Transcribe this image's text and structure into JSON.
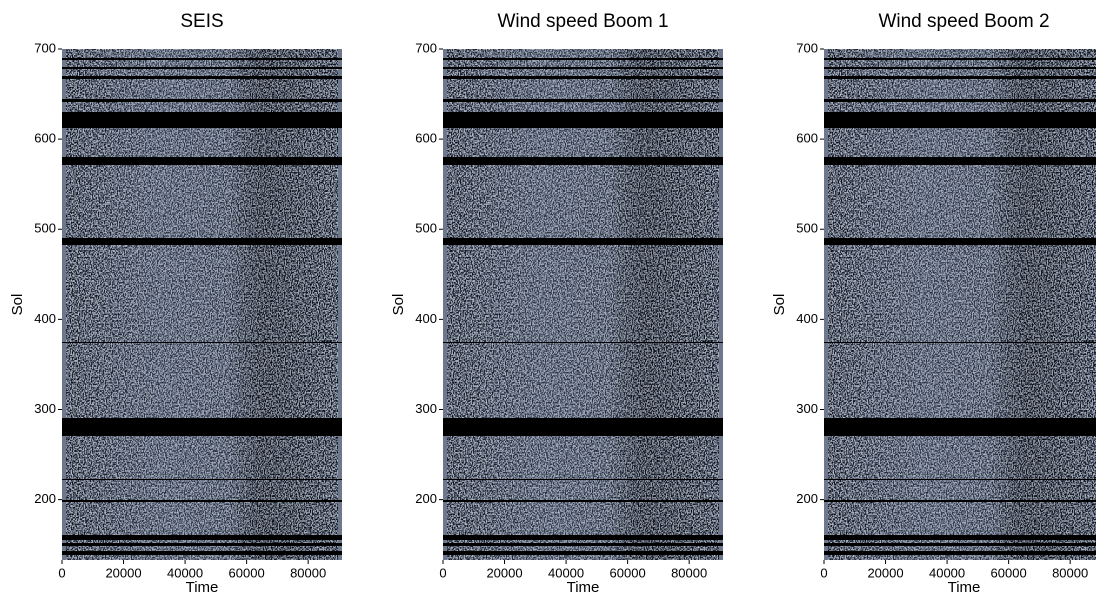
{
  "chart_data": [
    {
      "type": "image",
      "title": "SEIS",
      "xlabel": "Time",
      "ylabel": "Sol",
      "xlim": [
        0,
        91000
      ],
      "ylim": [
        133,
        700
      ],
      "xticks": [
        0,
        20000,
        40000,
        60000,
        80000
      ],
      "yticks": [
        200,
        300,
        400,
        500,
        600,
        700
      ]
    },
    {
      "type": "image",
      "title": "Wind speed Boom 1",
      "xlabel": "Time",
      "ylabel": "Sol",
      "xlim": [
        0,
        91000
      ],
      "ylim": [
        133,
        700
      ],
      "xticks": [
        0,
        20000,
        40000,
        60000,
        80000
      ],
      "yticks": [
        200,
        300,
        400,
        500,
        600,
        700
      ]
    },
    {
      "type": "image",
      "title": "Wind speed Boom 2",
      "xlabel": "Time",
      "ylabel": "Sol",
      "xlim": [
        0,
        91000
      ],
      "ylim": [
        133,
        700
      ],
      "xticks": [
        0,
        20000,
        40000,
        60000,
        80000
      ],
      "yticks": [
        200,
        300,
        400,
        500,
        600,
        700
      ]
    }
  ]
}
